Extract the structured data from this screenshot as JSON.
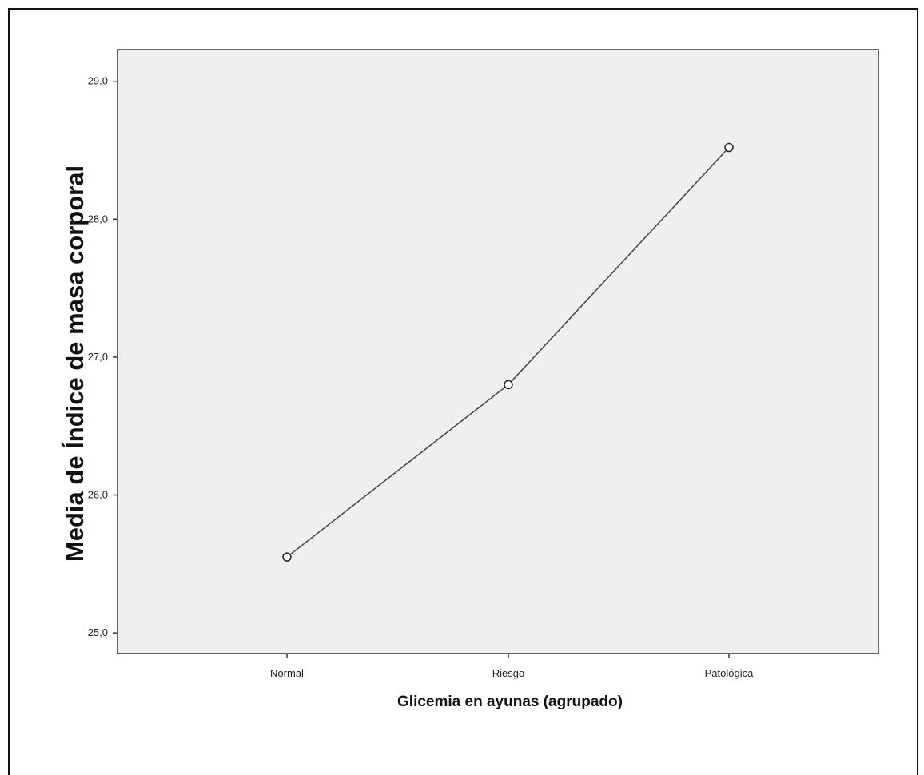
{
  "chart_data": {
    "type": "line",
    "categories": [
      "Normal",
      "Riesgo",
      "Patológica"
    ],
    "series": [
      {
        "values": [
          25.55,
          26.8,
          28.52
        ]
      }
    ],
    "xlabel": "Glicemia en ayunas (agrupado)",
    "ylabel": "Media de Índice de masa corporal",
    "ylim": [
      24.85,
      29.23
    ],
    "yticks": [
      25.0,
      26.0,
      27.0,
      28.0,
      29.0
    ],
    "ytick_labels": [
      "25,0",
      "26,0",
      "27,0",
      "28,0",
      "29,0"
    ],
    "grid": false,
    "marker": "open-circle",
    "colors": {
      "plot_background": "#efefef",
      "line": "#444444",
      "marker_fill": "#ffffff"
    }
  }
}
